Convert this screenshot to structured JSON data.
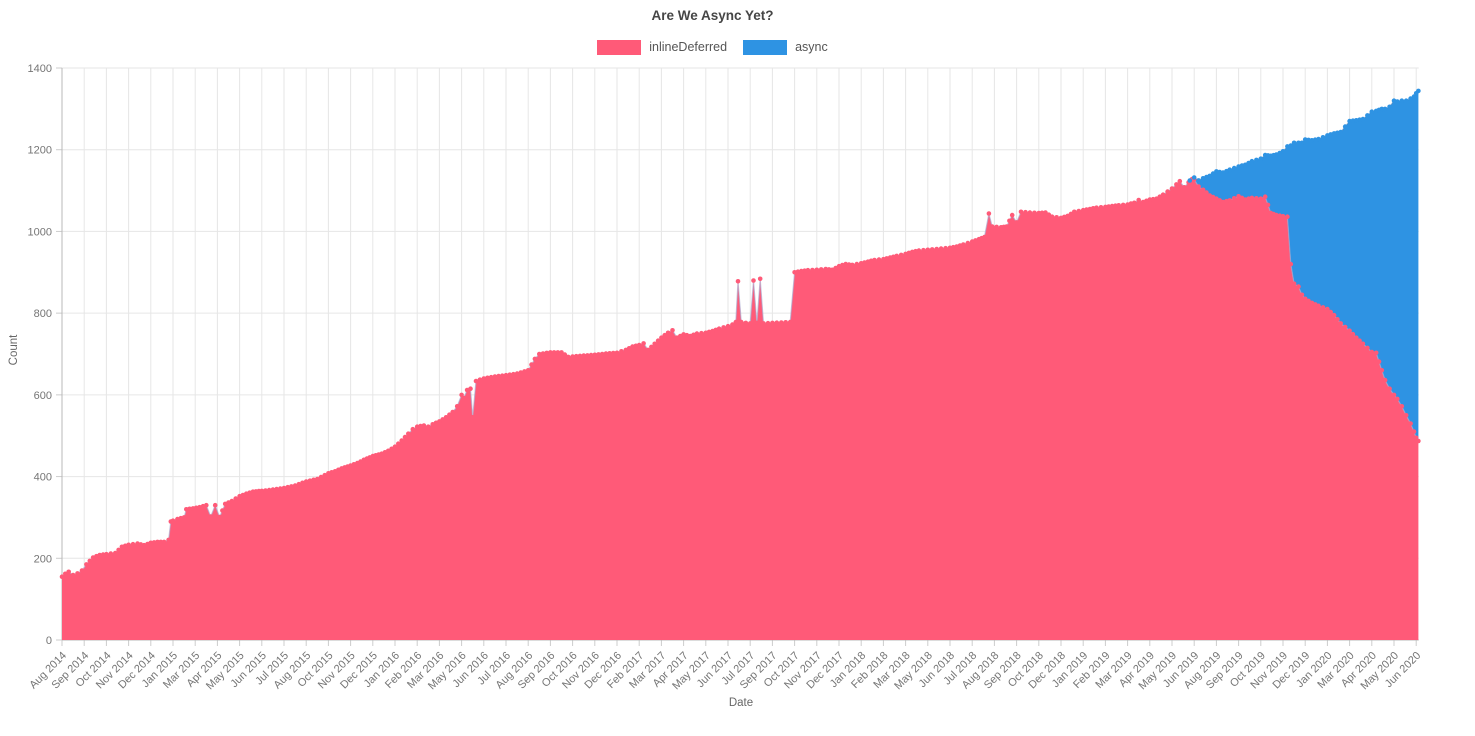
{
  "chart": {
    "background": "#ffffff",
    "colors": {
      "grid": "#e6e6e6",
      "axis_line": "#b8b8b8",
      "tick_mark": "#cccccc",
      "title_text": "#464646",
      "legend_text": "#555555",
      "tick_text": "#757575",
      "axis_title_text": "#666666",
      "pink_border_line": "#a9a9cf",
      "blue_border_line": "#4e7ab0"
    }
  },
  "chart_data": {
    "type": "area",
    "stacked": true,
    "title": "Are We Async Yet?",
    "xlabel": "Date",
    "ylabel": "Count",
    "ylim": [
      0,
      1400
    ],
    "y_ticks": [
      0,
      200,
      400,
      600,
      800,
      1000,
      1200,
      1400
    ],
    "grid": true,
    "legend_position": "top",
    "x_tick_rotation": -45,
    "categories": [
      "Aug 2014",
      "Sep 2014",
      "Oct 2014",
      "Nov 2014",
      "Dec 2014",
      "Jan 2015",
      "Mar 2015",
      "Apr 2015",
      "May 2015",
      "Jun 2015",
      "Jul 2015",
      "Aug 2015",
      "Oct 2015",
      "Nov 2015",
      "Dec 2015",
      "Jan 2016",
      "Feb 2016",
      "Mar 2016",
      "May 2016",
      "Jun 2016",
      "Jul 2016",
      "Aug 2016",
      "Sep 2016",
      "Oct 2016",
      "Nov 2016",
      "Dec 2016",
      "Feb 2017",
      "Mar 2017",
      "Apr 2017",
      "May 2017",
      "Jun 2017",
      "Jul 2017",
      "Sep 2017",
      "Oct 2017",
      "Nov 2017",
      "Dec 2017",
      "Jan 2018",
      "Feb 2018",
      "Mar 2018",
      "May 2018",
      "Jun 2018",
      "Jul 2018",
      "Aug 2018",
      "Sep 2018",
      "Oct 2018",
      "Dec 2018",
      "Jan 2019",
      "Feb 2019",
      "Mar 2019",
      "Apr 2019",
      "May 2019",
      "Jun 2019",
      "Aug 2019",
      "Sep 2019",
      "Oct 2019",
      "Nov 2019",
      "Dec 2019",
      "Jan 2020",
      "Mar 2020",
      "Apr 2020",
      "May 2020",
      "Jun 2020"
    ],
    "x_note": "series points are [category-index, value]; fractional indices are intra-month samples; async values are stacked on top of inlineDeferred",
    "series": [
      {
        "name": "inlineDeferred",
        "color": "#FF5A78",
        "points": [
          [
            0,
            155
          ],
          [
            0.15,
            162
          ],
          [
            0.3,
            167
          ],
          [
            0.5,
            159
          ],
          [
            0.7,
            163
          ],
          [
            0.9,
            170
          ],
          [
            1.1,
            185
          ],
          [
            1.4,
            202
          ],
          [
            1.7,
            208
          ],
          [
            2,
            210
          ],
          [
            2.4,
            213
          ],
          [
            2.7,
            228
          ],
          [
            3,
            233
          ],
          [
            3.4,
            236
          ],
          [
            3.7,
            232
          ],
          [
            4,
            238
          ],
          [
            4.3,
            240
          ],
          [
            4.6,
            240
          ],
          [
            4.8,
            245
          ],
          [
            4.9,
            290
          ],
          [
            5,
            292
          ],
          [
            5.2,
            296
          ],
          [
            5.5,
            300
          ],
          [
            5.6,
            320
          ],
          [
            5.9,
            322
          ],
          [
            6.2,
            325
          ],
          [
            6.5,
            330
          ],
          [
            6.7,
            302
          ],
          [
            6.9,
            330
          ],
          [
            7.1,
            301
          ],
          [
            7.35,
            333
          ],
          [
            7.65,
            340
          ],
          [
            8,
            352
          ],
          [
            8.3,
            358
          ],
          [
            8.6,
            363
          ],
          [
            9,
            365
          ],
          [
            9.5,
            368
          ],
          [
            10,
            372
          ],
          [
            10.5,
            378
          ],
          [
            11,
            388
          ],
          [
            11.5,
            394
          ],
          [
            12,
            408
          ],
          [
            12.3,
            413
          ],
          [
            12.6,
            420
          ],
          [
            13,
            427
          ],
          [
            13.3,
            433
          ],
          [
            13.6,
            441
          ],
          [
            14,
            450
          ],
          [
            14.4,
            456
          ],
          [
            14.7,
            463
          ],
          [
            15,
            473
          ],
          [
            15.3,
            488
          ],
          [
            15.6,
            505
          ],
          [
            15.8,
            516
          ],
          [
            16,
            522
          ],
          [
            16.3,
            525
          ],
          [
            16.5,
            522
          ],
          [
            16.7,
            528
          ],
          [
            17,
            535
          ],
          [
            17.3,
            545
          ],
          [
            17.6,
            558
          ],
          [
            17.8,
            572
          ],
          [
            18,
            600
          ],
          [
            18.1,
            592
          ],
          [
            18.25,
            612
          ],
          [
            18.4,
            615
          ],
          [
            18.5,
            545
          ],
          [
            18.65,
            634
          ],
          [
            19,
            640
          ],
          [
            19.5,
            645
          ],
          [
            20,
            648
          ],
          [
            20.5,
            652
          ],
          [
            21,
            660
          ],
          [
            21.3,
            688
          ],
          [
            21.5,
            700
          ],
          [
            22,
            704
          ],
          [
            22.5,
            704
          ],
          [
            22.8,
            693
          ],
          [
            23,
            694
          ],
          [
            23.5,
            696
          ],
          [
            24,
            698
          ],
          [
            24.5,
            701
          ],
          [
            25,
            703
          ],
          [
            25.4,
            710
          ],
          [
            25.7,
            718
          ],
          [
            26,
            722
          ],
          [
            26.2,
            726
          ],
          [
            26.4,
            710
          ],
          [
            26.7,
            725
          ],
          [
            27,
            740
          ],
          [
            27.3,
            752
          ],
          [
            27.5,
            758
          ],
          [
            27.7,
            740
          ],
          [
            28,
            748
          ],
          [
            28.3,
            744
          ],
          [
            28.6,
            750
          ],
          [
            29,
            752
          ],
          [
            29.3,
            756
          ],
          [
            29.6,
            762
          ],
          [
            30,
            768
          ],
          [
            30.2,
            772
          ],
          [
            30.35,
            778
          ],
          [
            30.45,
            878
          ],
          [
            30.6,
            778
          ],
          [
            30.8,
            776
          ],
          [
            31,
            775
          ],
          [
            31.15,
            880
          ],
          [
            31.3,
            776
          ],
          [
            31.45,
            884
          ],
          [
            31.6,
            775
          ],
          [
            32,
            776
          ],
          [
            32.4,
            777
          ],
          [
            32.8,
            778
          ],
          [
            33,
            900
          ],
          [
            33.3,
            903
          ],
          [
            33.6,
            905
          ],
          [
            34,
            906
          ],
          [
            34.4,
            908
          ],
          [
            34.7,
            906
          ],
          [
            35,
            915
          ],
          [
            35.3,
            920
          ],
          [
            35.6,
            918
          ],
          [
            36,
            922
          ],
          [
            36.3,
            926
          ],
          [
            36.6,
            930
          ],
          [
            37,
            932
          ],
          [
            37.3,
            936
          ],
          [
            37.6,
            940
          ],
          [
            38,
            945
          ],
          [
            38.3,
            950
          ],
          [
            38.6,
            953
          ],
          [
            39,
            955
          ],
          [
            39.4,
            957
          ],
          [
            39.8,
            959
          ],
          [
            40,
            960
          ],
          [
            40.3,
            963
          ],
          [
            40.6,
            968
          ],
          [
            41,
            975
          ],
          [
            41.3,
            981
          ],
          [
            41.55,
            986
          ],
          [
            41.75,
            1044
          ],
          [
            41.9,
            1012
          ],
          [
            42.3,
            1010
          ],
          [
            42.55,
            1012
          ],
          [
            42.8,
            1040
          ],
          [
            43,
            1022
          ],
          [
            43.2,
            1048
          ],
          [
            43.6,
            1046
          ],
          [
            44,
            1045
          ],
          [
            44.3,
            1046
          ],
          [
            44.6,
            1036
          ],
          [
            45,
            1033
          ],
          [
            45.3,
            1038
          ],
          [
            45.6,
            1048
          ],
          [
            46,
            1052
          ],
          [
            46.3,
            1055
          ],
          [
            46.6,
            1058
          ],
          [
            47,
            1060
          ],
          [
            47.3,
            1062
          ],
          [
            47.6,
            1064
          ],
          [
            48,
            1066
          ],
          [
            48.3,
            1070
          ],
          [
            48.5,
            1077
          ],
          [
            48.7,
            1072
          ],
          [
            49,
            1078
          ],
          [
            49.3,
            1080
          ],
          [
            49.6,
            1090
          ],
          [
            50,
            1105
          ],
          [
            50.2,
            1115
          ],
          [
            50.35,
            1123
          ],
          [
            50.55,
            1108
          ],
          [
            50.75,
            1120
          ],
          [
            50.9,
            1128
          ],
          [
            51,
            1127
          ],
          [
            51.2,
            1110
          ],
          [
            51.4,
            1102
          ],
          [
            51.7,
            1088
          ],
          [
            52,
            1080
          ],
          [
            52.3,
            1072
          ],
          [
            52.6,
            1076
          ],
          [
            53,
            1086
          ],
          [
            53.3,
            1078
          ],
          [
            53.6,
            1082
          ],
          [
            54,
            1080
          ],
          [
            54.2,
            1085
          ],
          [
            54.45,
            1045
          ],
          [
            54.7,
            1040
          ],
          [
            55,
            1037
          ],
          [
            55.2,
            1036
          ],
          [
            55.35,
            920
          ],
          [
            55.5,
            872
          ],
          [
            55.7,
            865
          ],
          [
            55.85,
            845
          ],
          [
            56,
            835
          ],
          [
            56.3,
            825
          ],
          [
            56.6,
            818
          ],
          [
            57,
            810
          ],
          [
            57.3,
            795
          ],
          [
            57.6,
            775
          ],
          [
            58,
            757
          ],
          [
            58.3,
            740
          ],
          [
            58.6,
            725
          ],
          [
            59,
            705
          ],
          [
            59.2,
            703
          ],
          [
            59.45,
            660
          ],
          [
            59.6,
            636
          ],
          [
            59.8,
            615
          ],
          [
            60,
            600
          ],
          [
            60.15,
            590
          ],
          [
            60.35,
            572
          ],
          [
            60.55,
            550
          ],
          [
            60.75,
            530
          ],
          [
            60.9,
            510
          ],
          [
            61,
            495
          ],
          [
            61.1,
            487
          ]
        ]
      },
      {
        "name": "async",
        "color": "#2E93E3",
        "points": [
          [
            50.8,
            2
          ],
          [
            51,
            5
          ],
          [
            51.2,
            15
          ],
          [
            51.4,
            28
          ],
          [
            51.7,
            48
          ],
          [
            52,
            67
          ],
          [
            52.3,
            72
          ],
          [
            52.6,
            75
          ],
          [
            53,
            73
          ],
          [
            53.3,
            85
          ],
          [
            53.6,
            90
          ],
          [
            54,
            98
          ],
          [
            54.2,
            102
          ],
          [
            54.45,
            140
          ],
          [
            54.7,
            148
          ],
          [
            55,
            159
          ],
          [
            55.2,
            172
          ],
          [
            55.35,
            290
          ],
          [
            55.5,
            345
          ],
          [
            55.7,
            352
          ],
          [
            55.85,
            372
          ],
          [
            56,
            390
          ],
          [
            56.3,
            398
          ],
          [
            56.6,
            408
          ],
          [
            57,
            425
          ],
          [
            57.3,
            445
          ],
          [
            57.6,
            468
          ],
          [
            58,
            513
          ],
          [
            58.3,
            532
          ],
          [
            58.6,
            550
          ],
          [
            59,
            588
          ],
          [
            59.2,
            592
          ],
          [
            59.45,
            640
          ],
          [
            59.6,
            664
          ],
          [
            59.8,
            690
          ],
          [
            60,
            720
          ],
          [
            60.15,
            728
          ],
          [
            60.35,
            748
          ],
          [
            60.55,
            770
          ],
          [
            60.75,
            795
          ],
          [
            60.9,
            820
          ],
          [
            61,
            843
          ],
          [
            61.1,
            857
          ]
        ]
      }
    ]
  }
}
